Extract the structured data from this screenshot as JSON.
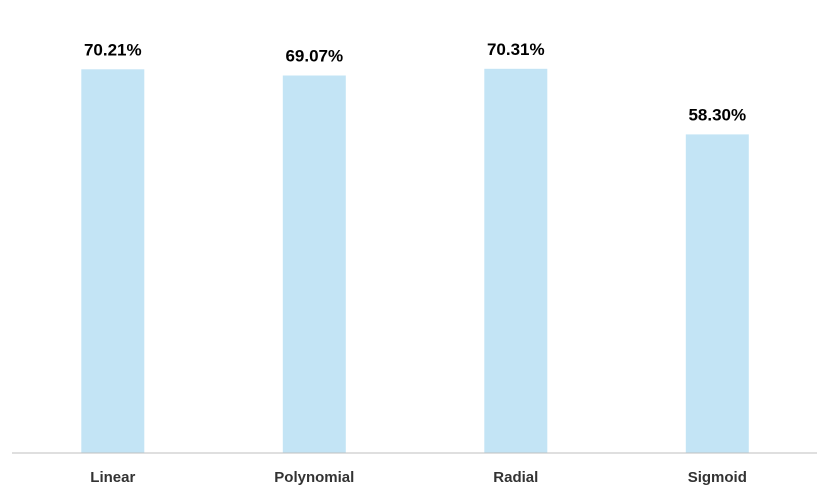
{
  "chart_data": {
    "type": "bar",
    "categories": [
      "Linear",
      "Polynomial",
      "Radial",
      "Sigmoid"
    ],
    "values": [
      70.21,
      69.07,
      70.31,
      58.3
    ],
    "data_labels": [
      "70.21%",
      "69.07%",
      "70.31%",
      "58.30%"
    ],
    "ylim": [
      0,
      80
    ],
    "grid": false,
    "legend": "none",
    "bar_color": "#c3e4f5",
    "axis_color": "#bfbfbf"
  }
}
